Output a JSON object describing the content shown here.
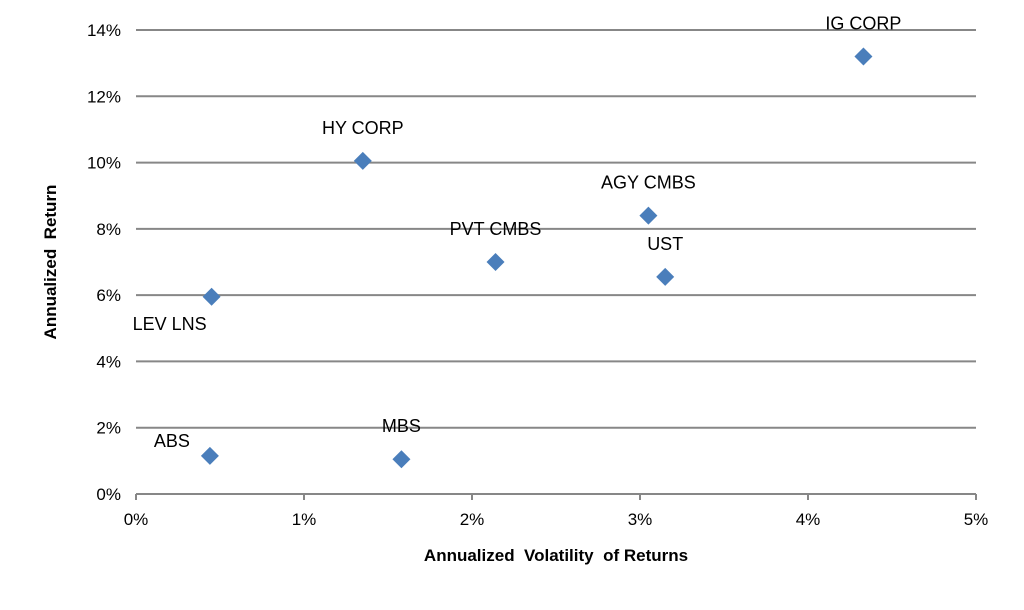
{
  "chart_data": {
    "type": "scatter",
    "title": "",
    "xlabel": "Annualized  Volatility  of Returns",
    "ylabel": "Annualized  Return",
    "xlim": [
      0,
      5
    ],
    "ylim": [
      0,
      14
    ],
    "x_ticks": [
      "0%",
      "1%",
      "2%",
      "3%",
      "4%",
      "5%"
    ],
    "y_ticks": [
      "0%",
      "2%",
      "4%",
      "6%",
      "8%",
      "10%",
      "12%",
      "14%"
    ],
    "grid": "horizontal",
    "legend": "none",
    "marker_color": "#4a7ebb",
    "points": [
      {
        "label": "IG CORP",
        "x": 4.33,
        "y": 13.2,
        "label_pos": "above"
      },
      {
        "label": "HY CORP",
        "x": 1.35,
        "y": 10.05,
        "label_pos": "above"
      },
      {
        "label": "AGY CMBS",
        "x": 3.05,
        "y": 8.4,
        "label_pos": "above"
      },
      {
        "label": "PVT CMBS",
        "x": 2.14,
        "y": 7.0,
        "label_pos": "above"
      },
      {
        "label": "UST",
        "x": 3.15,
        "y": 6.55,
        "label_pos": "above"
      },
      {
        "label": "LEV LNS",
        "x": 0.45,
        "y": 5.95,
        "label_pos": "below-left"
      },
      {
        "label": "ABS",
        "x": 0.44,
        "y": 1.15,
        "label_pos": "left"
      },
      {
        "label": "MBS",
        "x": 1.58,
        "y": 1.05,
        "label_pos": "above"
      }
    ]
  }
}
